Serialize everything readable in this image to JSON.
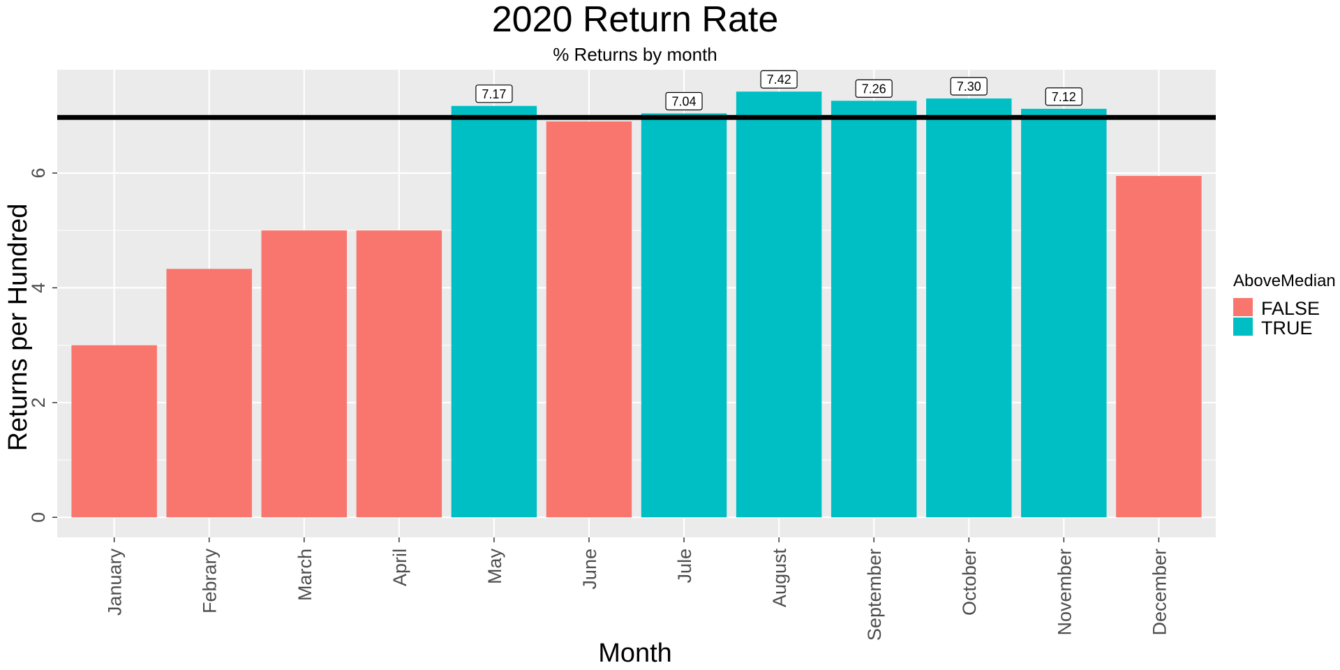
{
  "chart_data": {
    "type": "bar",
    "title": "2020 Return Rate",
    "subtitle": "% Returns by month",
    "xlabel": "Month",
    "ylabel": "Returns per Hundred",
    "categories": [
      "January",
      "Febrary",
      "March",
      "April",
      "May",
      "June",
      "Jule",
      "August",
      "September",
      "October",
      "November",
      "December"
    ],
    "values": [
      3.0,
      4.33,
      5.0,
      5.0,
      7.17,
      6.9,
      7.04,
      7.42,
      7.26,
      7.3,
      7.12,
      5.95
    ],
    "above_median": [
      false,
      false,
      false,
      false,
      true,
      false,
      true,
      true,
      true,
      true,
      true,
      false
    ],
    "data_labels": [
      null,
      null,
      null,
      null,
      "7.17",
      null,
      "7.04",
      "7.42",
      "7.26",
      "7.30",
      "7.12",
      null
    ],
    "median_line": 6.97,
    "yticks": [
      0,
      2,
      4,
      6
    ],
    "ylim": [
      -0.35,
      7.8
    ],
    "grid": true,
    "legend": {
      "title": "AboveMedian",
      "position": "right",
      "entries": [
        {
          "label": "FALSE",
          "color": "#F8766D"
        },
        {
          "label": "TRUE",
          "color": "#00BFC4"
        }
      ]
    },
    "colors": {
      "false": "#F8766D",
      "true": "#00BFC4",
      "panel": "#EBEBEB",
      "grid": "#FFFFFF",
      "median_line": "#000000"
    }
  }
}
